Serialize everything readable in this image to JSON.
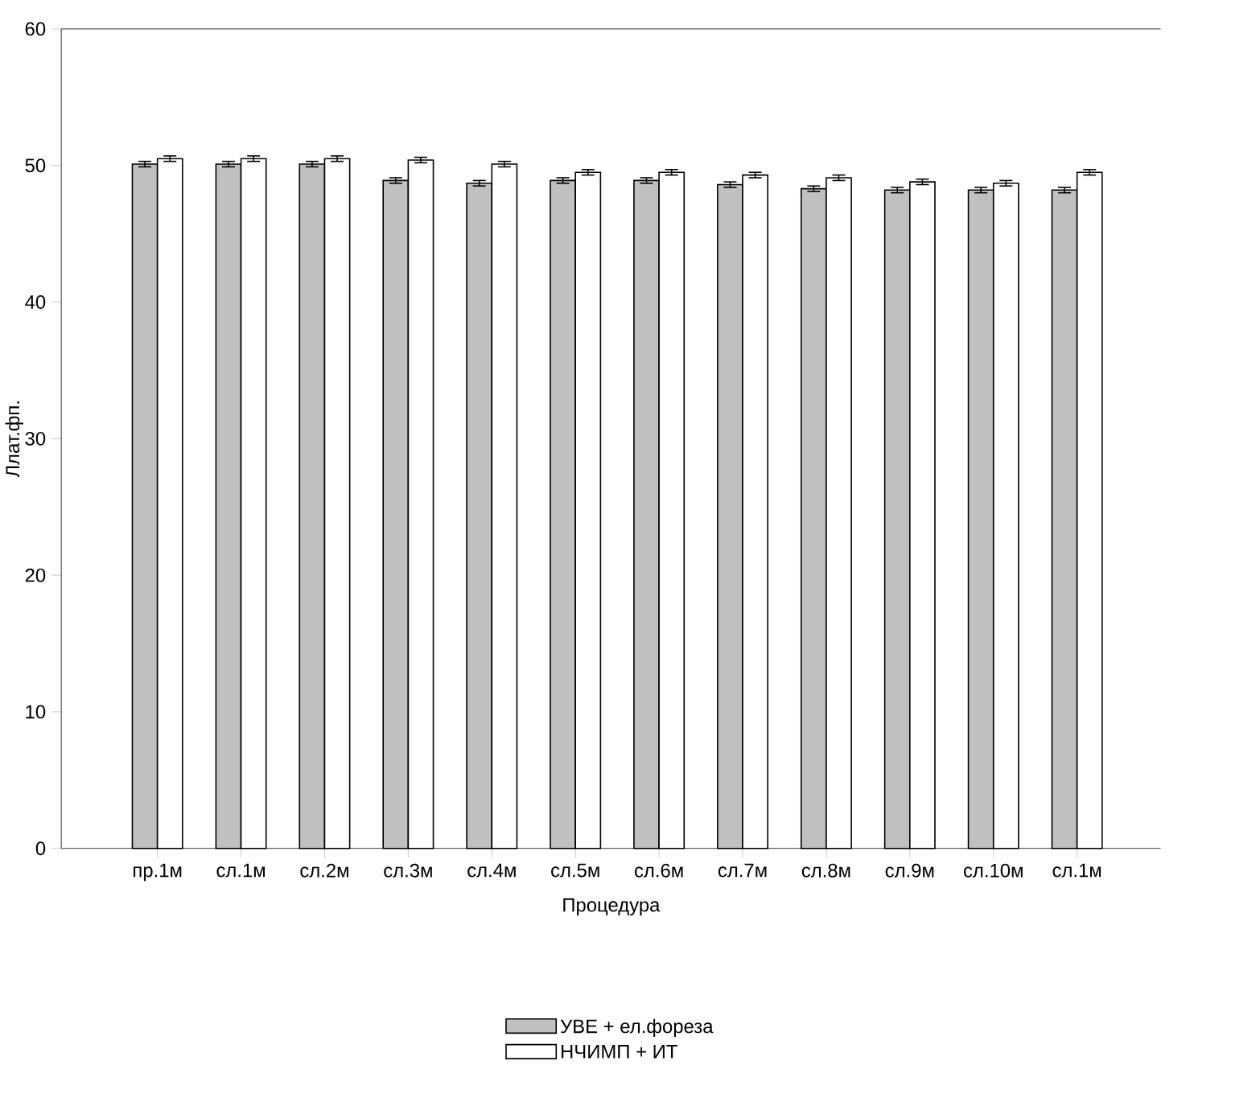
{
  "chart_data": {
    "type": "bar",
    "xlabel": "Процедура",
    "ylabel": "Ллат.фп.",
    "categories": [
      "пр.1м",
      "сл.1м",
      "сл.2м",
      "сл.3м",
      "сл.4м",
      "сл.5м",
      "сл.6м",
      "сл.7м",
      "сл.8м",
      "сл.9м",
      "сл.10м",
      "сл.1м"
    ],
    "series": [
      {
        "name": "УВЕ + ел.фореза",
        "color": "#c0c0c0",
        "values": [
          50.1,
          50.1,
          50.1,
          48.9,
          48.7,
          48.9,
          48.9,
          48.6,
          48.3,
          48.2,
          48.2,
          48.2
        ],
        "errors": [
          0.2,
          0.2,
          0.2,
          0.2,
          0.2,
          0.2,
          0.2,
          0.2,
          0.2,
          0.2,
          0.2,
          0.2
        ]
      },
      {
        "name": "НЧИМП + ИТ",
        "color": "#ffffff",
        "values": [
          50.5,
          50.5,
          50.5,
          50.4,
          50.1,
          49.5,
          49.5,
          49.3,
          49.1,
          48.8,
          48.7,
          49.5
        ],
        "errors": [
          0.2,
          0.2,
          0.2,
          0.2,
          0.2,
          0.2,
          0.2,
          0.2,
          0.2,
          0.2,
          0.2,
          0.2
        ]
      }
    ],
    "ylim": [
      0,
      60
    ],
    "yticks": [
      0,
      10,
      20,
      30,
      40,
      50,
      60
    ],
    "grid": false,
    "legend": "bottom"
  }
}
